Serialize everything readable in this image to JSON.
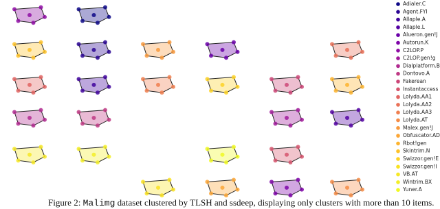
{
  "chart_data": {
    "type": "scatter",
    "xlim": [
      0,
      100
    ],
    "ylim": [
      0,
      100
    ],
    "caption": {
      "prefix": "Figure 2:",
      "code": "Malimg",
      "text": "dataset clustered by TLSH and ssdeep, displaying only clusters with more than 10 items."
    },
    "series": [
      {
        "name": "Adialer.C",
        "color": "#0d0887",
        "x": [
          19,
          26,
          27,
          24,
          20,
          23
        ],
        "y": [
          97,
          98,
          93,
          90,
          91,
          94
        ]
      },
      {
        "name": "Agent.FYI",
        "color": "#2a0593",
        "x": [
          19,
          26,
          27,
          24,
          20,
          23
        ],
        "y": [
          79,
          80,
          75,
          72,
          73,
          76
        ]
      },
      {
        "name": "Allaple.A",
        "color": "#41049d",
        "x": [
          19,
          26,
          27,
          24,
          20,
          23
        ],
        "y": [
          61,
          62,
          57,
          54,
          55,
          58
        ]
      },
      {
        "name": "Allaple.L",
        "color": "#5402a3",
        "x": [
          86,
          93,
          94,
          91,
          87,
          90
        ],
        "y": [
          44,
          45,
          40,
          37,
          38,
          41
        ]
      },
      {
        "name": "Alueron.gen!J",
        "color": "#6a00a8",
        "x": [
          53,
          60,
          61,
          58,
          54,
          57
        ],
        "y": [
          79,
          80,
          75,
          72,
          73,
          76
        ]
      },
      {
        "name": "Autorun.K",
        "color": "#7e03a8",
        "x": [
          70,
          77,
          78,
          75,
          71,
          74
        ],
        "y": [
          8,
          9,
          4,
          1,
          2,
          5
        ]
      },
      {
        "name": "C2LOP.P",
        "color": "#8f0da4",
        "x": [
          2,
          9,
          10,
          7,
          3,
          6
        ],
        "y": [
          97,
          98,
          93,
          90,
          91,
          94
        ]
      },
      {
        "name": "C2LOP.gen!g",
        "color": "#a11b9b",
        "x": [
          70,
          77,
          78,
          75,
          71,
          74
        ],
        "y": [
          44,
          45,
          40,
          37,
          38,
          41
        ]
      },
      {
        "name": "Dialplatform.B",
        "color": "#b12a90",
        "x": [
          2,
          9,
          10,
          7,
          3,
          6
        ],
        "y": [
          44,
          45,
          40,
          37,
          38,
          41
        ]
      },
      {
        "name": "Dontovo.A",
        "color": "#bf3984",
        "x": [
          19,
          26,
          27,
          24,
          20,
          23
        ],
        "y": [
          44,
          45,
          40,
          37,
          38,
          41
        ]
      },
      {
        "name": "Fakerean",
        "color": "#cc4778",
        "x": [
          70,
          77,
          78,
          75,
          71,
          74
        ],
        "y": [
          61,
          62,
          57,
          54,
          55,
          58
        ]
      },
      {
        "name": "Instantaccess",
        "color": "#d6556d",
        "x": [
          70,
          77,
          78,
          75,
          71,
          74
        ],
        "y": [
          25,
          26,
          21,
          18,
          19,
          22
        ]
      },
      {
        "name": "Lolyda.AA1",
        "color": "#e16462",
        "x": [
          2,
          9,
          10,
          7,
          3,
          6
        ],
        "y": [
          61,
          62,
          57,
          54,
          55,
          58
        ]
      },
      {
        "name": "Lolyda.AA2",
        "color": "#e97158",
        "x": [
          86,
          93,
          94,
          91,
          87,
          90
        ],
        "y": [
          79,
          80,
          75,
          72,
          73,
          76
        ]
      },
      {
        "name": "Lolyda.AA3",
        "color": "#f07f4f",
        "x": [
          36,
          43,
          44,
          41,
          37,
          40
        ],
        "y": [
          61,
          62,
          57,
          54,
          55,
          58
        ]
      },
      {
        "name": "Lolyda.AT",
        "color": "#f58c46",
        "x": [
          86,
          93,
          94,
          91,
          87,
          90
        ],
        "y": [
          8,
          9,
          4,
          1,
          2,
          5
        ]
      },
      {
        "name": "Malex.gen!J",
        "color": "#f89a3e",
        "x": [
          36,
          43,
          44,
          41,
          37,
          40
        ],
        "y": [
          79,
          80,
          75,
          72,
          73,
          76
        ]
      },
      {
        "name": "Obfuscator.AD",
        "color": "#fca636",
        "x": [
          53,
          60,
          61,
          58,
          54,
          57
        ],
        "y": [
          8,
          9,
          4,
          1,
          2,
          5
        ]
      },
      {
        "name": "Rbot!gen",
        "color": "#fdb42f",
        "x": [
          86,
          93,
          94,
          91,
          87,
          90
        ],
        "y": [
          61,
          62,
          57,
          54,
          55,
          58
        ]
      },
      {
        "name": "Skintrim.N",
        "color": "#fec229",
        "x": [
          2,
          9,
          10,
          7,
          3,
          6
        ],
        "y": [
          79,
          80,
          75,
          72,
          73,
          76
        ]
      },
      {
        "name": "Swizzor.gen!E",
        "color": "#fdd225",
        "x": [
          53,
          60,
          61,
          58,
          54,
          57
        ],
        "y": [
          61,
          62,
          57,
          54,
          55,
          58
        ]
      },
      {
        "name": "Swizzor.gen!I",
        "color": "#f9e221",
        "x": [
          36,
          43,
          44,
          41,
          37,
          40
        ],
        "y": [
          8,
          9,
          4,
          1,
          2,
          5
        ]
      },
      {
        "name": "VB.AT",
        "color": "#f6e826",
        "x": [
          2,
          9,
          10,
          7,
          3,
          6
        ],
        "y": [
          25,
          26,
          21,
          18,
          19,
          22
        ]
      },
      {
        "name": "Wintrim.BX",
        "color": "#f3ee27",
        "x": [
          19,
          26,
          27,
          24,
          20,
          23
        ],
        "y": [
          25,
          26,
          21,
          18,
          19,
          22
        ]
      },
      {
        "name": "Yuner.A",
        "color": "#f0f921",
        "x": [
          53,
          60,
          61,
          58,
          54,
          57
        ],
        "y": [
          25,
          26,
          21,
          18,
          19,
          22
        ]
      }
    ]
  }
}
